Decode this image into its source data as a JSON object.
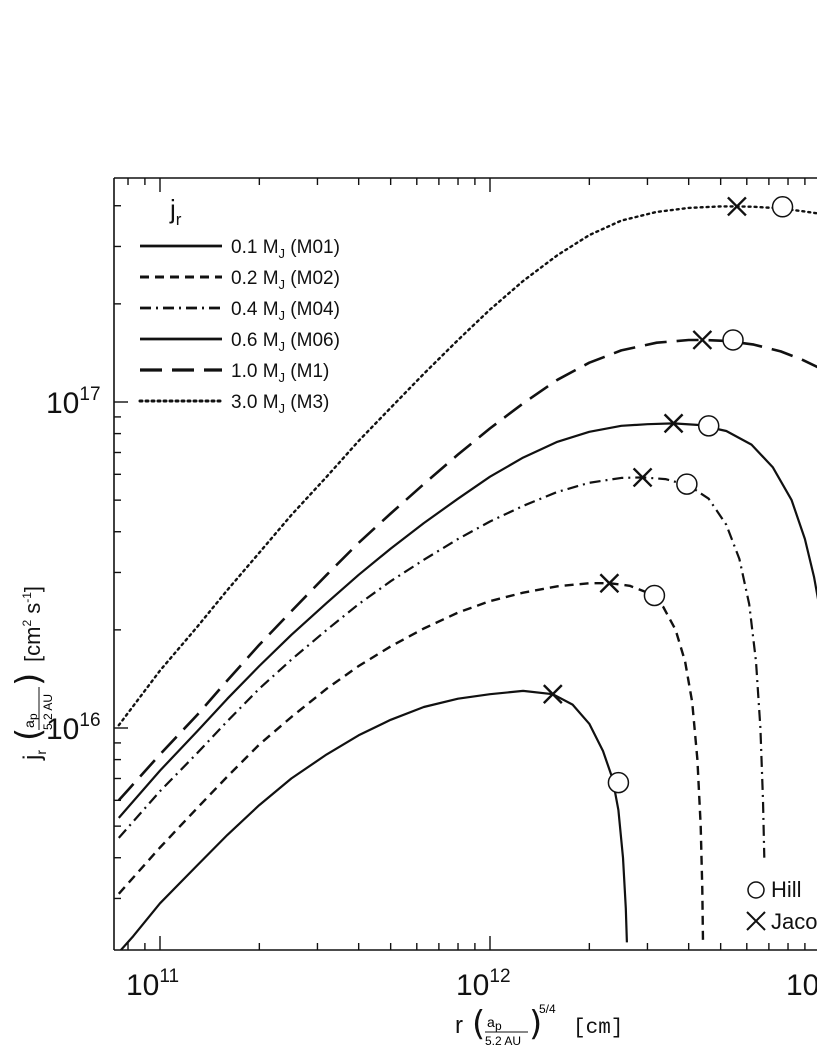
{
  "chart_data": {
    "type": "line",
    "title": "",
    "legend_title": "j",
    "legend_title_sub": "r",
    "legend_position": "top-left",
    "xscale": "log",
    "yscale": "log",
    "xlim": [
      75000000000.0,
      10000000000000.0
    ],
    "ylim": [
      2200000000000000.0,
      4.6e+17
    ],
    "grid": false,
    "xticks": [
      {
        "value": 100000000000.0,
        "base": "10",
        "exp": "11"
      },
      {
        "value": 1000000000000.0,
        "base": "10",
        "exp": "12"
      },
      {
        "value": 10000000000000.0,
        "base": "10",
        "exp": ""
      }
    ],
    "yticks": [
      {
        "value": 1e+16,
        "base": "10",
        "exp": "16"
      },
      {
        "value": 1e+17,
        "base": "10",
        "exp": "17"
      }
    ],
    "xlabel": {
      "prefix": "r",
      "num": "a",
      "num_sub": "p",
      "den": "5.2 AU",
      "exp": "5/4",
      "unit": "[cm]"
    },
    "ylabel": {
      "prefix": "j",
      "prefix_sub": "r",
      "num": "a",
      "num_sub": "p",
      "den": "5.2 AU",
      "unit": "[cm",
      "unit_exp1": "2",
      "unit_mid": " s",
      "unit_exp2": "-1",
      "unit_end": "]"
    },
    "marker_legend": [
      {
        "symbol": "circle",
        "label": "Hill"
      },
      {
        "symbol": "cross",
        "label": "Jaco"
      }
    ],
    "series": [
      {
        "name": "0.1 M",
        "name_sub": "J",
        "tag": "(M01)",
        "dash": "solid",
        "points": [
          [
            75000000000.0,
            2050000000000000.0
          ],
          [
            83000000000.0,
            2300000000000000.0
          ],
          [
            100000000000.0,
            2900000000000000.0
          ],
          [
            130000000000.0,
            3800000000000000.0
          ],
          [
            160000000000.0,
            4700000000000000.0
          ],
          [
            200000000000.0,
            5800000000000000.0
          ],
          [
            250000000000.0,
            7000000000000000.0
          ],
          [
            320000000000.0,
            8300000000000000.0
          ],
          [
            400000000000.0,
            9500000000000000.0
          ],
          [
            500000000000.0,
            1.06e+16
          ],
          [
            630000000000.0,
            1.16e+16
          ],
          [
            800000000000.0,
            1.23e+16
          ],
          [
            1000000000000.0,
            1.27e+16
          ],
          [
            1260000000000.0,
            1.3e+16
          ],
          [
            1550000000000.0,
            1.27e+16
          ],
          [
            1780000000000.0,
            1.18e+16
          ],
          [
            2000000000000.0,
            1.03e+16
          ],
          [
            2200000000000.0,
            8500000000000000.0
          ],
          [
            2350000000000.0,
            7000000000000000.0
          ],
          [
            2450000000000.0,
            5600000000000000.0
          ],
          [
            2530000000000.0,
            4000000000000000.0
          ],
          [
            2580000000000.0,
            2800000000000000.0
          ],
          [
            2600000000000.0,
            2200000000000000.0
          ]
        ],
        "crosses": [
          [
            1550000000000.0,
            1.27e+16
          ]
        ],
        "circles": [
          [
            2450000000000.0,
            6800000000000000.0
          ]
        ]
      },
      {
        "name": "0.2 M",
        "name_sub": "J",
        "tag": "(M02)",
        "dash": "dashed",
        "points": [
          [
            75000000000.0,
            3100000000000000.0
          ],
          [
            100000000000.0,
            4300000000000000.0
          ],
          [
            130000000000.0,
            5700000000000000.0
          ],
          [
            160000000000.0,
            7100000000000000.0
          ],
          [
            200000000000.0,
            8900000000000000.0
          ],
          [
            250000000000.0,
            1.08e+16
          ],
          [
            320000000000.0,
            1.32e+16
          ],
          [
            400000000000.0,
            1.55e+16
          ],
          [
            500000000000.0,
            1.78e+16
          ],
          [
            630000000000.0,
            2.02e+16
          ],
          [
            800000000000.0,
            2.26e+16
          ],
          [
            1000000000000.0,
            2.45e+16
          ],
          [
            1260000000000.0,
            2.6e+16
          ],
          [
            1600000000000.0,
            2.72e+16
          ],
          [
            2000000000000.0,
            2.78e+16
          ],
          [
            2300000000000.0,
            2.78e+16
          ],
          [
            2650000000000.0,
            2.73e+16
          ],
          [
            3000000000000.0,
            2.6e+16
          ],
          [
            3350000000000.0,
            2.35e+16
          ],
          [
            3650000000000.0,
            2e+16
          ],
          [
            3900000000000.0,
            1.6e+16
          ],
          [
            4100000000000.0,
            1.2e+16
          ],
          [
            4250000000000.0,
            8000000000000000.0
          ],
          [
            4350000000000.0,
            5000000000000000.0
          ],
          [
            4400000000000.0,
            3200000000000000.0
          ],
          [
            4420000000000.0,
            2200000000000000.0
          ]
        ],
        "crosses": [
          [
            2300000000000.0,
            2.78e+16
          ]
        ],
        "circles": [
          [
            3150000000000.0,
            2.55e+16
          ]
        ]
      },
      {
        "name": "0.4 M",
        "name_sub": "J",
        "tag": "(M04)",
        "dash": "dashdot",
        "points": [
          [
            75000000000.0,
            4600000000000000.0
          ],
          [
            100000000000.0,
            6400000000000000.0
          ],
          [
            130000000000.0,
            8400000000000000.0
          ],
          [
            160000000000.0,
            1.05e+16
          ],
          [
            200000000000.0,
            1.32e+16
          ],
          [
            250000000000.0,
            1.62e+16
          ],
          [
            320000000000.0,
            2e+16
          ],
          [
            400000000000.0,
            2.4e+16
          ],
          [
            500000000000.0,
            2.82e+16
          ],
          [
            630000000000.0,
            3.28e+16
          ],
          [
            800000000000.0,
            3.8e+16
          ],
          [
            1000000000000.0,
            4.3e+16
          ],
          [
            1260000000000.0,
            4.8e+16
          ],
          [
            1600000000000.0,
            5.3e+16
          ],
          [
            2000000000000.0,
            5.65e+16
          ],
          [
            2500000000000.0,
            5.85e+16
          ],
          [
            2900000000000.0,
            5.87e+16
          ],
          [
            3400000000000.0,
            5.8e+16
          ],
          [
            4000000000000.0,
            5.55e+16
          ],
          [
            4600000000000.0,
            5.05e+16
          ],
          [
            5200000000000.0,
            4.2e+16
          ],
          [
            5700000000000.0,
            3.3e+16
          ],
          [
            6100000000000.0,
            2.4e+16
          ],
          [
            6400000000000.0,
            1.6e+16
          ],
          [
            6600000000000.0,
            1e+16
          ],
          [
            6720000000000.0,
            6000000000000000.0
          ],
          [
            6780000000000.0,
            4000000000000000.0
          ]
        ],
        "crosses": [
          [
            2900000000000.0,
            5.87e+16
          ]
        ],
        "circles": [
          [
            3950000000000.0,
            5.6e+16
          ]
        ]
      },
      {
        "name": "0.6 M",
        "name_sub": "J",
        "tag": "(M06)",
        "dash": "solid",
        "points": [
          [
            75000000000.0,
            5300000000000000.0
          ],
          [
            100000000000.0,
            7400000000000000.0
          ],
          [
            130000000000.0,
            9800000000000000.0
          ],
          [
            160000000000.0,
            1.23e+16
          ],
          [
            200000000000.0,
            1.55e+16
          ],
          [
            250000000000.0,
            1.93e+16
          ],
          [
            320000000000.0,
            2.42e+16
          ],
          [
            400000000000.0,
            2.95e+16
          ],
          [
            500000000000.0,
            3.55e+16
          ],
          [
            630000000000.0,
            4.25e+16
          ],
          [
            800000000000.0,
            5.05e+16
          ],
          [
            1000000000000.0,
            5.9e+16
          ],
          [
            1260000000000.0,
            6.75e+16
          ],
          [
            1600000000000.0,
            7.55e+16
          ],
          [
            2000000000000.0,
            8.1e+16
          ],
          [
            2500000000000.0,
            8.45e+16
          ],
          [
            3000000000000.0,
            8.55e+16
          ],
          [
            3600000000000.0,
            8.6e+16
          ],
          [
            4300000000000.0,
            8.5e+16
          ],
          [
            5200000000000.0,
            8.15e+16
          ],
          [
            6200000000000.0,
            7.4e+16
          ],
          [
            7200000000000.0,
            6.3e+16
          ],
          [
            8200000000000.0,
            5e+16
          ],
          [
            9000000000000.0,
            3.8e+16
          ],
          [
            9600000000000.0,
            2.9e+16
          ],
          [
            10000000000000.0,
            2.3e+16
          ]
        ],
        "crosses": [
          [
            3600000000000.0,
            8.6e+16
          ]
        ],
        "circles": [
          [
            4600000000000.0,
            8.45e+16
          ]
        ]
      },
      {
        "name": "1.0 M",
        "name_sub": "J",
        "tag": "(M1)",
        "dash": "longdash",
        "points": [
          [
            75000000000.0,
            6000000000000000.0
          ],
          [
            100000000000.0,
            8300000000000000.0
          ],
          [
            130000000000.0,
            1.1e+16
          ],
          [
            160000000000.0,
            1.4e+16
          ],
          [
            200000000000.0,
            1.8e+16
          ],
          [
            250000000000.0,
            2.28e+16
          ],
          [
            320000000000.0,
            2.95e+16
          ],
          [
            400000000000.0,
            3.7e+16
          ],
          [
            500000000000.0,
            4.55e+16
          ],
          [
            630000000000.0,
            5.6e+16
          ],
          [
            800000000000.0,
            6.9e+16
          ],
          [
            1000000000000.0,
            8.3e+16
          ],
          [
            1260000000000.0,
            9.9e+16
          ],
          [
            1600000000000.0,
            1.17e+17
          ],
          [
            2000000000000.0,
            1.32e+17
          ],
          [
            2500000000000.0,
            1.44e+17
          ],
          [
            3200000000000.0,
            1.52e+17
          ],
          [
            4000000000000.0,
            1.55e+17
          ],
          [
            4400000000000.0,
            1.55e+17
          ],
          [
            5200000000000.0,
            1.54e+17
          ],
          [
            6300000000000.0,
            1.5e+17
          ],
          [
            7600000000000.0,
            1.43e+17
          ],
          [
            8800000000000.0,
            1.35e+17
          ],
          [
            10000000000000.0,
            1.27e+17
          ]
        ],
        "crosses": [
          [
            4400000000000.0,
            1.55e+17
          ]
        ],
        "circles": [
          [
            5450000000000.0,
            1.55e+17
          ]
        ]
      },
      {
        "name": "3.0 M",
        "name_sub": "J",
        "tag": "(M3)",
        "dash": "dotted",
        "points": [
          [
            75000000000.0,
            1.02e+16
          ],
          [
            100000000000.0,
            1.5e+16
          ],
          [
            130000000000.0,
            2.05e+16
          ],
          [
            160000000000.0,
            2.65e+16
          ],
          [
            200000000000.0,
            3.45e+16
          ],
          [
            250000000000.0,
            4.5e+16
          ],
          [
            320000000000.0,
            5.9e+16
          ],
          [
            400000000000.0,
            7.6e+16
          ],
          [
            500000000000.0,
            9.6e+16
          ],
          [
            630000000000.0,
            1.22e+17
          ],
          [
            800000000000.0,
            1.55e+17
          ],
          [
            1000000000000.0,
            1.92e+17
          ],
          [
            1260000000000.0,
            2.35e+17
          ],
          [
            1600000000000.0,
            2.82e+17
          ],
          [
            2000000000000.0,
            3.25e+17
          ],
          [
            2500000000000.0,
            3.6e+17
          ],
          [
            3200000000000.0,
            3.83e+17
          ],
          [
            4000000000000.0,
            3.94e+17
          ],
          [
            5000000000000.0,
            3.98e+17
          ],
          [
            5600000000000.0,
            3.98e+17
          ],
          [
            6300000000000.0,
            3.97e+17
          ],
          [
            7500000000000.0,
            3.93e+17
          ],
          [
            8800000000000.0,
            3.85e+17
          ],
          [
            10000000000000.0,
            3.78e+17
          ]
        ],
        "crosses": [
          [
            5600000000000.0,
            3.98e+17
          ]
        ],
        "circles": [
          [
            7700000000000.0,
            3.97e+17
          ]
        ]
      }
    ]
  }
}
